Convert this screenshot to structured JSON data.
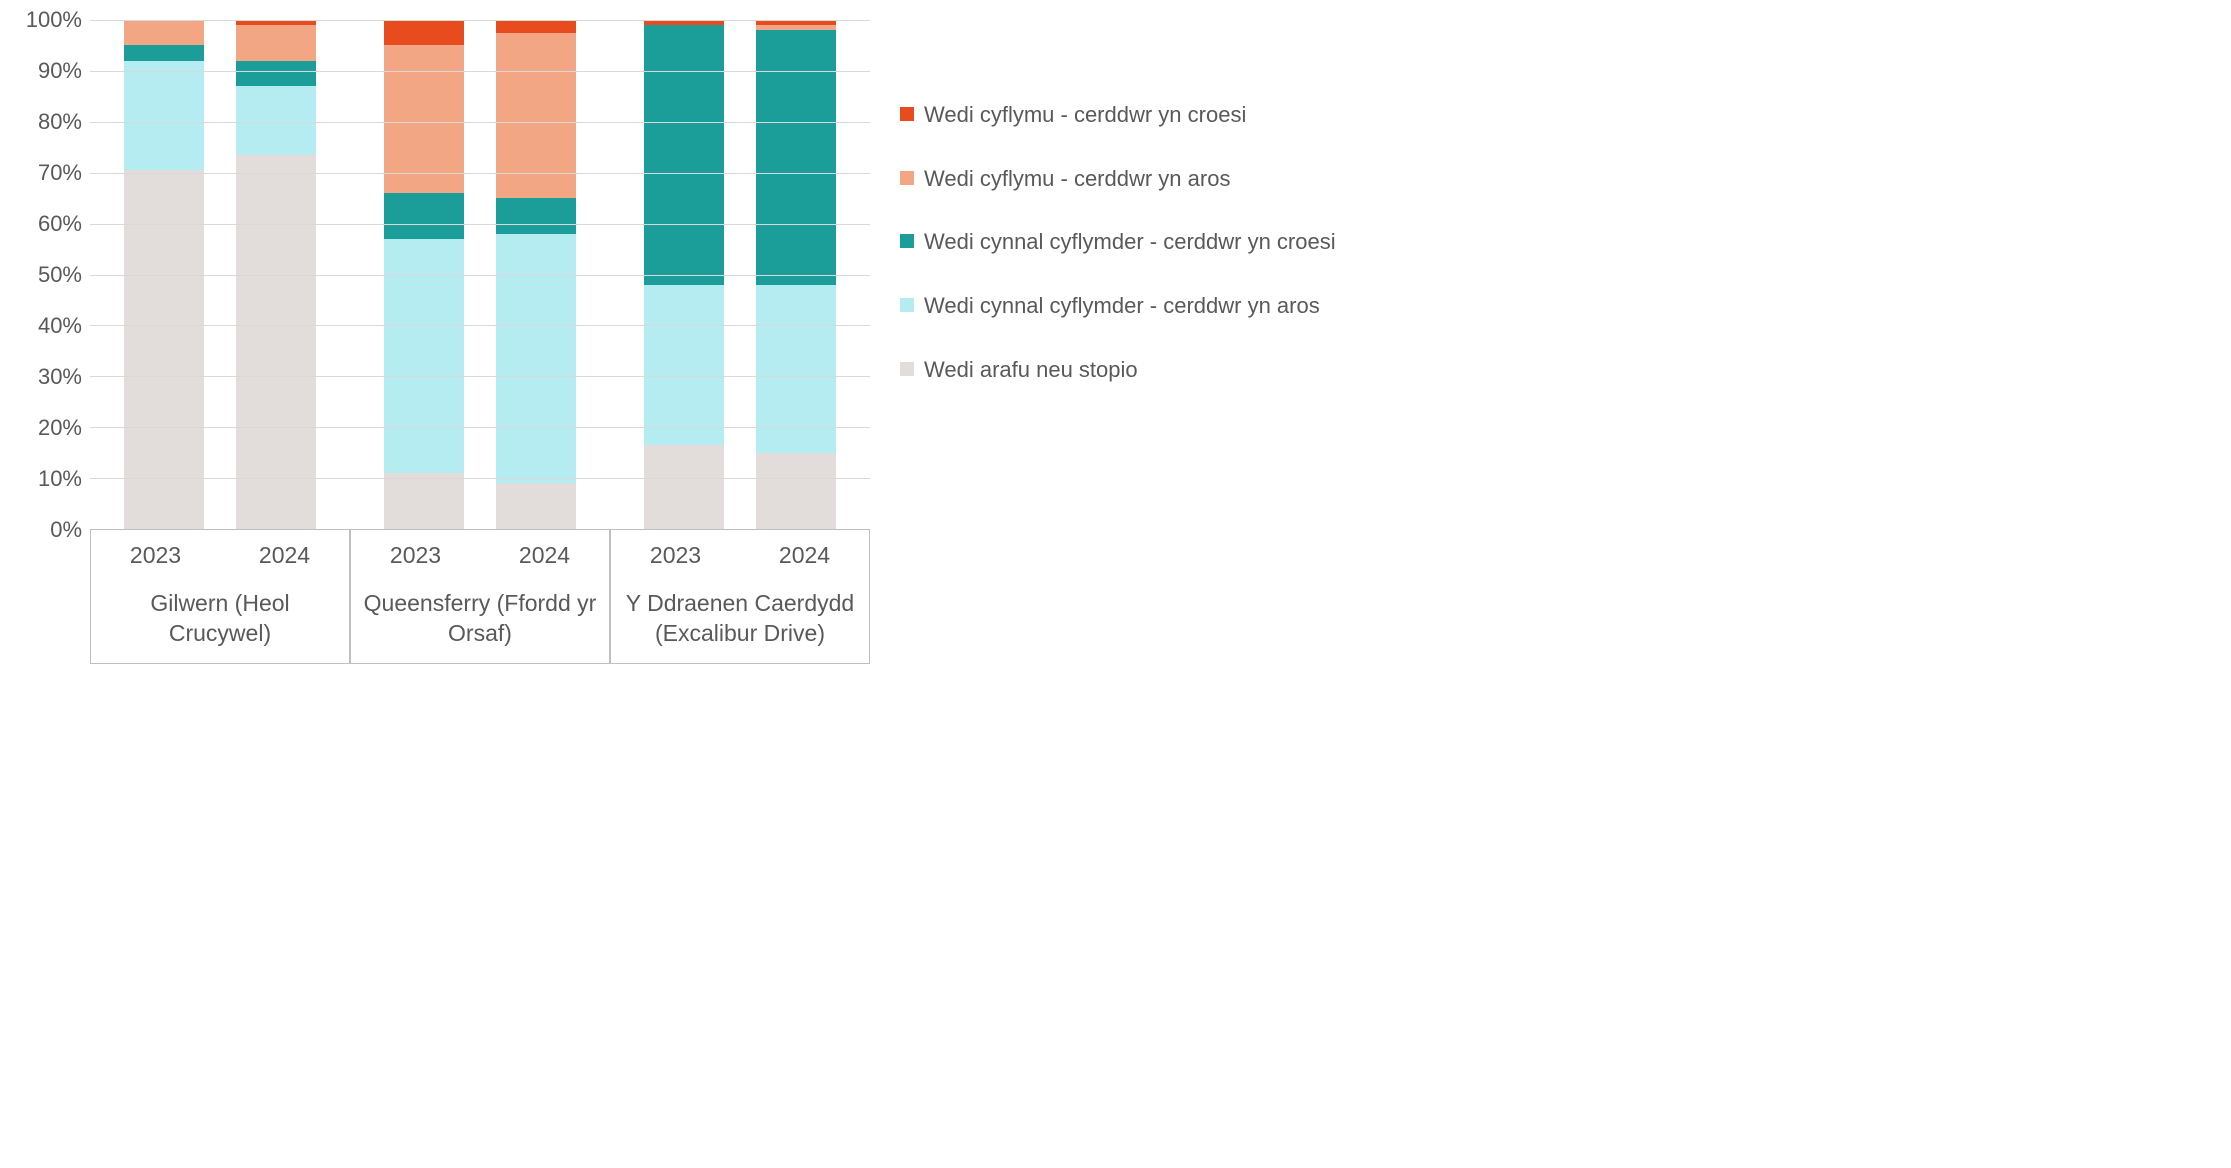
{
  "chart": {
    "type": "stacked-bar-100pct",
    "ylim": [
      0,
      100
    ],
    "ytick_step": 10,
    "ytick_suffix": "%",
    "grid_color": "#d9d9d9",
    "axis_color": "#bfbfbf",
    "label_color": "#595959",
    "label_fontsize": 22,
    "series": [
      {
        "key": "s5",
        "label": "Wedi cyflymu - cerddwr yn croesi",
        "color": "#e84b1e"
      },
      {
        "key": "s4",
        "label": "Wedi cyflymu - cerddwr yn aros",
        "color": "#f2a684"
      },
      {
        "key": "s3",
        "label": "Wedi cynnal cyflymder - cerddwr yn croesi",
        "color": "#1b9e99"
      },
      {
        "key": "s2",
        "label": "Wedi cynnal cyflymder - cerddwr yn aros",
        "color": "#b4ecf2"
      },
      {
        "key": "s1",
        "label": "Wedi arafu neu stopio",
        "color": "#e2dddb"
      }
    ],
    "groups": [
      {
        "location": "Gilwern (Heol Crucywel)",
        "bars": [
          {
            "year": "2023",
            "values": {
              "s1": 70.5,
              "s2": 21.5,
              "s3": 3.0,
              "s4": 5.0,
              "s5": 0.0
            }
          },
          {
            "year": "2024",
            "values": {
              "s1": 73.5,
              "s2": 13.5,
              "s3": 5.0,
              "s4": 7.0,
              "s5": 1.0
            }
          }
        ]
      },
      {
        "location": "Queensferry (Ffordd yr Orsaf)",
        "bars": [
          {
            "year": "2023",
            "values": {
              "s1": 11.0,
              "s2": 46.0,
              "s3": 9.0,
              "s4": 29.0,
              "s5": 5.0
            }
          },
          {
            "year": "2024",
            "values": {
              "s1": 9.0,
              "s2": 49.0,
              "s3": 7.0,
              "s4": 32.5,
              "s5": 2.5
            }
          }
        ]
      },
      {
        "location": "Y Ddraenen Caerdydd (Excalibur Drive)",
        "bars": [
          {
            "year": "2023",
            "values": {
              "s1": 16.5,
              "s2": 31.5,
              "s3": 51.0,
              "s4": 0.0,
              "s5": 1.0
            }
          },
          {
            "year": "2024",
            "values": {
              "s1": 15.0,
              "s2": 33.0,
              "s3": 50.0,
              "s4": 1.0,
              "s5": 1.0
            }
          }
        ]
      }
    ]
  }
}
